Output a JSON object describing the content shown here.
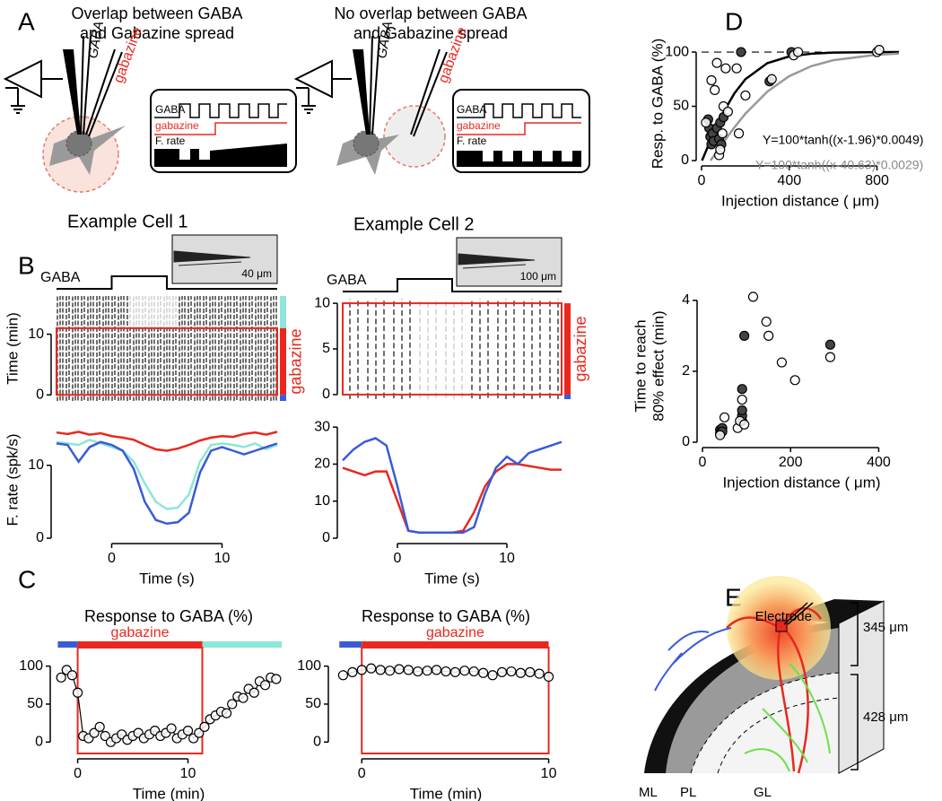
{
  "panel_labels": [
    "A",
    "B",
    "C",
    "D",
    "E"
  ],
  "panel_a": {
    "left_title": [
      "Overlap between GABA",
      "and Gabazine spread"
    ],
    "right_title": [
      "No overlap between GABA",
      "and Gabazine spread"
    ],
    "pipette_gaba": "GABA",
    "pipette_gabazine": "gabazine",
    "trace_labels": [
      "GABA",
      "gabazine",
      "F. rate"
    ]
  },
  "panel_e": {
    "electrode": "Electrode",
    "depths": [
      "345 μm",
      "428 μm"
    ],
    "layers": [
      "ML",
      "PL",
      "GL"
    ]
  },
  "chart_data": [
    {
      "type": "raster",
      "title": "Example Cell 1",
      "stimulus_label": "GABA",
      "stimulus": [
        0,
        5
      ],
      "scale_label": "40 μm",
      "ylabel": "Time (min)",
      "xlim": [
        -5,
        15
      ],
      "ylim": [
        -1,
        16.3
      ],
      "yticks": [
        0,
        10
      ],
      "window": [
        0,
        11
      ],
      "window_color": "#e8281e",
      "condition_label": "gabazine",
      "condition_bars": [
        {
          "color": "#8de6d8",
          "range": [
            11,
            16.3
          ]
        },
        {
          "color": "#e8281e",
          "range": [
            0,
            11
          ]
        },
        {
          "color": "#3a5bd8",
          "range": [
            -1,
            0
          ]
        }
      ]
    },
    {
      "type": "line",
      "ylabel": "F. rate (spk/s)",
      "xlabel": "Time (s)",
      "xlim": [
        -5,
        15
      ],
      "xticks": [
        0,
        10
      ],
      "ylim": [
        0,
        16
      ],
      "yticks": [
        0,
        10
      ],
      "x": [
        -5,
        -4,
        -3,
        -2,
        -1,
        0,
        1,
        2,
        3,
        4,
        5,
        6,
        7,
        8,
        9,
        10,
        11,
        12,
        13,
        14,
        15
      ],
      "series": [
        {
          "color": "#e8281e",
          "values": [
            14.5,
            14.3,
            14.6,
            14.2,
            14.4,
            14.0,
            13.8,
            13.5,
            12.8,
            12.2,
            12.0,
            12.3,
            12.8,
            13.4,
            13.8,
            14.0,
            13.9,
            14.3,
            14.5,
            14.2,
            14.6
          ]
        },
        {
          "color": "#8de6d8",
          "values": [
            13.2,
            13.0,
            12.8,
            13.5,
            13.0,
            12.5,
            12.0,
            10.5,
            7.5,
            5.0,
            4.0,
            4.2,
            6.0,
            10.5,
            12.8,
            13.0,
            12.8,
            12.5,
            13.0,
            12.2,
            12.8
          ]
        },
        {
          "color": "#3a5bd8",
          "values": [
            13.0,
            12.8,
            10.5,
            12.5,
            13.2,
            12.8,
            12.0,
            9.5,
            5.0,
            2.5,
            2.0,
            2.2,
            3.5,
            9.0,
            12.0,
            12.5,
            12.0,
            11.5,
            12.0,
            12.5,
            13.0
          ]
        }
      ]
    },
    {
      "type": "raster",
      "title": "Example Cell 2",
      "stimulus_label": "GABA",
      "stimulus": [
        0,
        5
      ],
      "scale_label": "100 μm",
      "xlim": [
        -5,
        15
      ],
      "ylim": [
        -0.5,
        10.5
      ],
      "yticks": [
        0,
        5,
        10
      ],
      "window": [
        0,
        10
      ],
      "window_color": "#e8281e",
      "condition_label": "gabazine",
      "condition_bars": [
        {
          "color": "#e8281e",
          "range": [
            0,
            10
          ]
        },
        {
          "color": "#3a5bd8",
          "range": [
            -0.5,
            0
          ]
        }
      ]
    },
    {
      "type": "line",
      "xlabel": "Time (s)",
      "xlim": [
        -5,
        15
      ],
      "xticks": [
        0,
        10
      ],
      "ylim": [
        0,
        31
      ],
      "yticks": [
        0,
        10,
        20,
        30
      ],
      "x": [
        -5,
        -4,
        -3,
        -2,
        -1,
        0,
        1,
        2,
        3,
        4,
        5,
        6,
        7,
        8,
        9,
        10,
        11,
        12,
        13,
        14,
        15
      ],
      "series": [
        {
          "color": "#e8281e",
          "values": [
            19,
            18,
            17,
            18,
            18,
            10,
            2,
            1.5,
            1.5,
            1.5,
            1.5,
            2,
            7,
            14,
            18,
            20,
            20,
            19.5,
            19,
            18.5,
            18.5
          ]
        },
        {
          "color": "#3a5bd8",
          "values": [
            21,
            24,
            26,
            27,
            25,
            14,
            2,
            1.5,
            1.5,
            1.5,
            1.5,
            1.5,
            3,
            12,
            19,
            22,
            20,
            23,
            24,
            25,
            26
          ]
        }
      ]
    },
    {
      "type": "line",
      "title": "Response to GABA (%)",
      "xlabel": "Time (min)",
      "xlim": [
        -2,
        18.5
      ],
      "xticks": [
        0,
        10
      ],
      "ylim": [
        -15,
        109
      ],
      "yticks": [
        0,
        50,
        100
      ],
      "window": [
        0,
        11.3
      ],
      "window_color": "#e8281e",
      "condition_label": "gabazine",
      "condition_bars": [
        {
          "color": "#3a5bd8",
          "range": [
            -1.8,
            0
          ]
        },
        {
          "color": "#e8281e",
          "range": [
            0,
            11.3
          ]
        },
        {
          "color": "#8de6d8",
          "range": [
            11.3,
            18.5
          ]
        }
      ],
      "x": [
        -1.5,
        -1,
        -0.5,
        0,
        0.5,
        1,
        1.5,
        2,
        2.5,
        3,
        3.5,
        4,
        4.5,
        5,
        5.5,
        6,
        6.5,
        7,
        7.5,
        8,
        8.5,
        9,
        9.5,
        10,
        10.5,
        11,
        11.5,
        12,
        12.5,
        13,
        13.5,
        14,
        14.5,
        15,
        15.5,
        16,
        16.5,
        17,
        17.5,
        18
      ],
      "series": [
        {
          "color": "#000000",
          "marker": "open",
          "values": [
            85,
            95,
            88,
            65,
            8,
            5,
            12,
            20,
            8,
            0,
            5,
            10,
            3,
            8,
            12,
            5,
            10,
            15,
            8,
            12,
            18,
            5,
            10,
            15,
            5,
            12,
            20,
            30,
            35,
            40,
            38,
            50,
            60,
            58,
            70,
            65,
            80,
            75,
            85,
            83
          ]
        }
      ]
    },
    {
      "type": "line",
      "title": "Response to GABA (%)",
      "xlabel": "Time (min)",
      "xlim": [
        -1.5,
        10.5
      ],
      "xticks": [
        0,
        10
      ],
      "ylim": [
        -15,
        109
      ],
      "yticks": [
        0,
        50,
        100
      ],
      "window": [
        0,
        10
      ],
      "window_color": "#e8281e",
      "condition_label": "gabazine",
      "condition_bars": [
        {
          "color": "#3a5bd8",
          "range": [
            -1.2,
            0
          ]
        },
        {
          "color": "#e8281e",
          "range": [
            0,
            10
          ]
        }
      ],
      "x": [
        -1,
        -0.5,
        0,
        0.5,
        1,
        1.5,
        2,
        2.5,
        3,
        3.5,
        4,
        4.5,
        5,
        5.5,
        6,
        6.5,
        7,
        7.5,
        8,
        8.5,
        9,
        9.5,
        10
      ],
      "series": [
        {
          "color": "#000000",
          "marker": "open",
          "values": [
            88,
            92,
            95,
            97,
            95,
            94,
            96,
            95,
            93,
            94,
            95,
            93,
            92,
            94,
            93,
            91,
            88,
            92,
            93,
            91,
            92,
            90,
            86
          ]
        }
      ]
    },
    {
      "type": "scatter",
      "ylabel": "Resp. to GABA (%)",
      "xlabel": "Injection distance ( μm)",
      "xlim": [
        0,
        900
      ],
      "xticks": [
        0,
        400,
        800
      ],
      "ylim": [
        0,
        105
      ],
      "yticks": [
        0,
        50,
        100
      ],
      "reference_line": 100,
      "series": [
        {
          "color": "#000000",
          "marker": "none",
          "x": [
            2,
            50,
            100,
            150,
            200,
            300,
            400,
            500,
            600,
            800,
            900
          ],
          "values": [
            0,
            23,
            44.6,
            62,
            75,
            89.8,
            96,
            98.5,
            99.5,
            99.95,
            100
          ]
        },
        {
          "color": "#999999",
          "marker": "none",
          "x": [
            41,
            50,
            100,
            150,
            200,
            300,
            400,
            500,
            600,
            800,
            900
          ],
          "values": [
            0,
            2.7,
            17,
            30.7,
            43.2,
            63.6,
            77.8,
            87,
            92.5,
            97.6,
            98.6
          ]
        },
        {
          "color": "#444444",
          "marker": "filled",
          "x": [
            30,
            35,
            40,
            45,
            50,
            55,
            70,
            80,
            85,
            90,
            100,
            180,
            310,
            410
          ],
          "values": [
            38,
            30,
            22,
            15,
            25,
            18,
            30,
            20,
            35,
            15,
            40,
            100,
            73,
            100
          ]
        },
        {
          "color": "#000000",
          "marker": "open",
          "x": [
            20,
            45,
            60,
            70,
            80,
            85,
            95,
            100,
            110,
            120,
            160,
            170,
            200,
            320,
            420,
            440,
            800,
            810
          ],
          "values": [
            35,
            74,
            65,
            90,
            5,
            10,
            25,
            50,
            85,
            45,
            85,
            25,
            60,
            75,
            97,
            100,
            100,
            102
          ]
        }
      ],
      "annotations": [
        {
          "text": "Y=100*tanh((x-1.96)*0.0049)",
          "color": "#000000"
        },
        {
          "text": "Y=100*tanh((x-40.63)*0.0029)",
          "color": "#888888"
        }
      ]
    },
    {
      "type": "scatter",
      "ylabel": [
        "Time to reach",
        "80% effect (min)"
      ],
      "xlabel": "Injection distance ( μm)",
      "xlim": [
        0,
        450
      ],
      "xticks": [
        0,
        200,
        400
      ],
      "ylim": [
        0,
        4.3
      ],
      "yticks": [
        0,
        2,
        4
      ],
      "series": [
        {
          "color": "#444444",
          "marker": "filled",
          "x": [
            40,
            40,
            45,
            45,
            90,
            90,
            90,
            90,
            95,
            290
          ],
          "values": [
            0.35,
            0.25,
            0.4,
            0.3,
            0.6,
            0.75,
            0.9,
            1.5,
            3.0,
            2.75
          ]
        },
        {
          "color": "#000000",
          "marker": "open",
          "x": [
            40,
            50,
            80,
            85,
            90,
            95,
            115,
            145,
            150,
            180,
            210,
            290
          ],
          "values": [
            0.2,
            0.7,
            0.4,
            0.6,
            1.2,
            0.5,
            4.1,
            3.4,
            3.0,
            2.25,
            1.75,
            2.4
          ]
        }
      ]
    }
  ]
}
